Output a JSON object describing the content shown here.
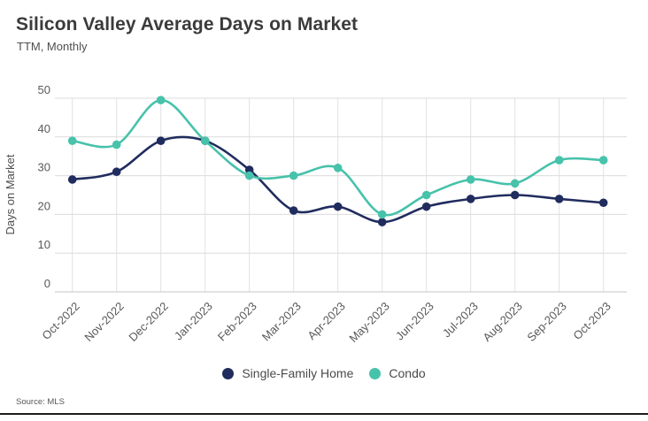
{
  "chart_data": {
    "type": "line",
    "title": "Silicon Valley Average Days on Market",
    "subtitle": "TTM, Monthly",
    "ylabel": "Days on Market",
    "xlabel": "",
    "source": "Source: MLS",
    "categories": [
      "Oct-2022",
      "Nov-2022",
      "Dec-2022",
      "Jan-2023",
      "Feb-2023",
      "Mar-2023",
      "Apr-2023",
      "May-2023",
      "Jun-2023",
      "Jul-2023",
      "Aug-2023",
      "Sep-2023",
      "Oct-2023"
    ],
    "series": [
      {
        "name": "Single-Family Home",
        "color": "#202c5e",
        "values": [
          29,
          31,
          39,
          39,
          31.5,
          21,
          22,
          18,
          22,
          24,
          25,
          24,
          23
        ]
      },
      {
        "name": "Condo",
        "color": "#47c2ab",
        "values": [
          39,
          38,
          49.5,
          39,
          30,
          30,
          32,
          20,
          25,
          29,
          28,
          34,
          34
        ]
      }
    ],
    "ylim": [
      0,
      50
    ],
    "yticks": [
      0,
      10,
      20,
      30,
      40,
      50
    ],
    "grid": true,
    "legend_position": "bottom",
    "colors": {
      "gridline": "#dcdcdc",
      "axis_line": "#c6c6c6",
      "tick_text": "#595959"
    }
  }
}
